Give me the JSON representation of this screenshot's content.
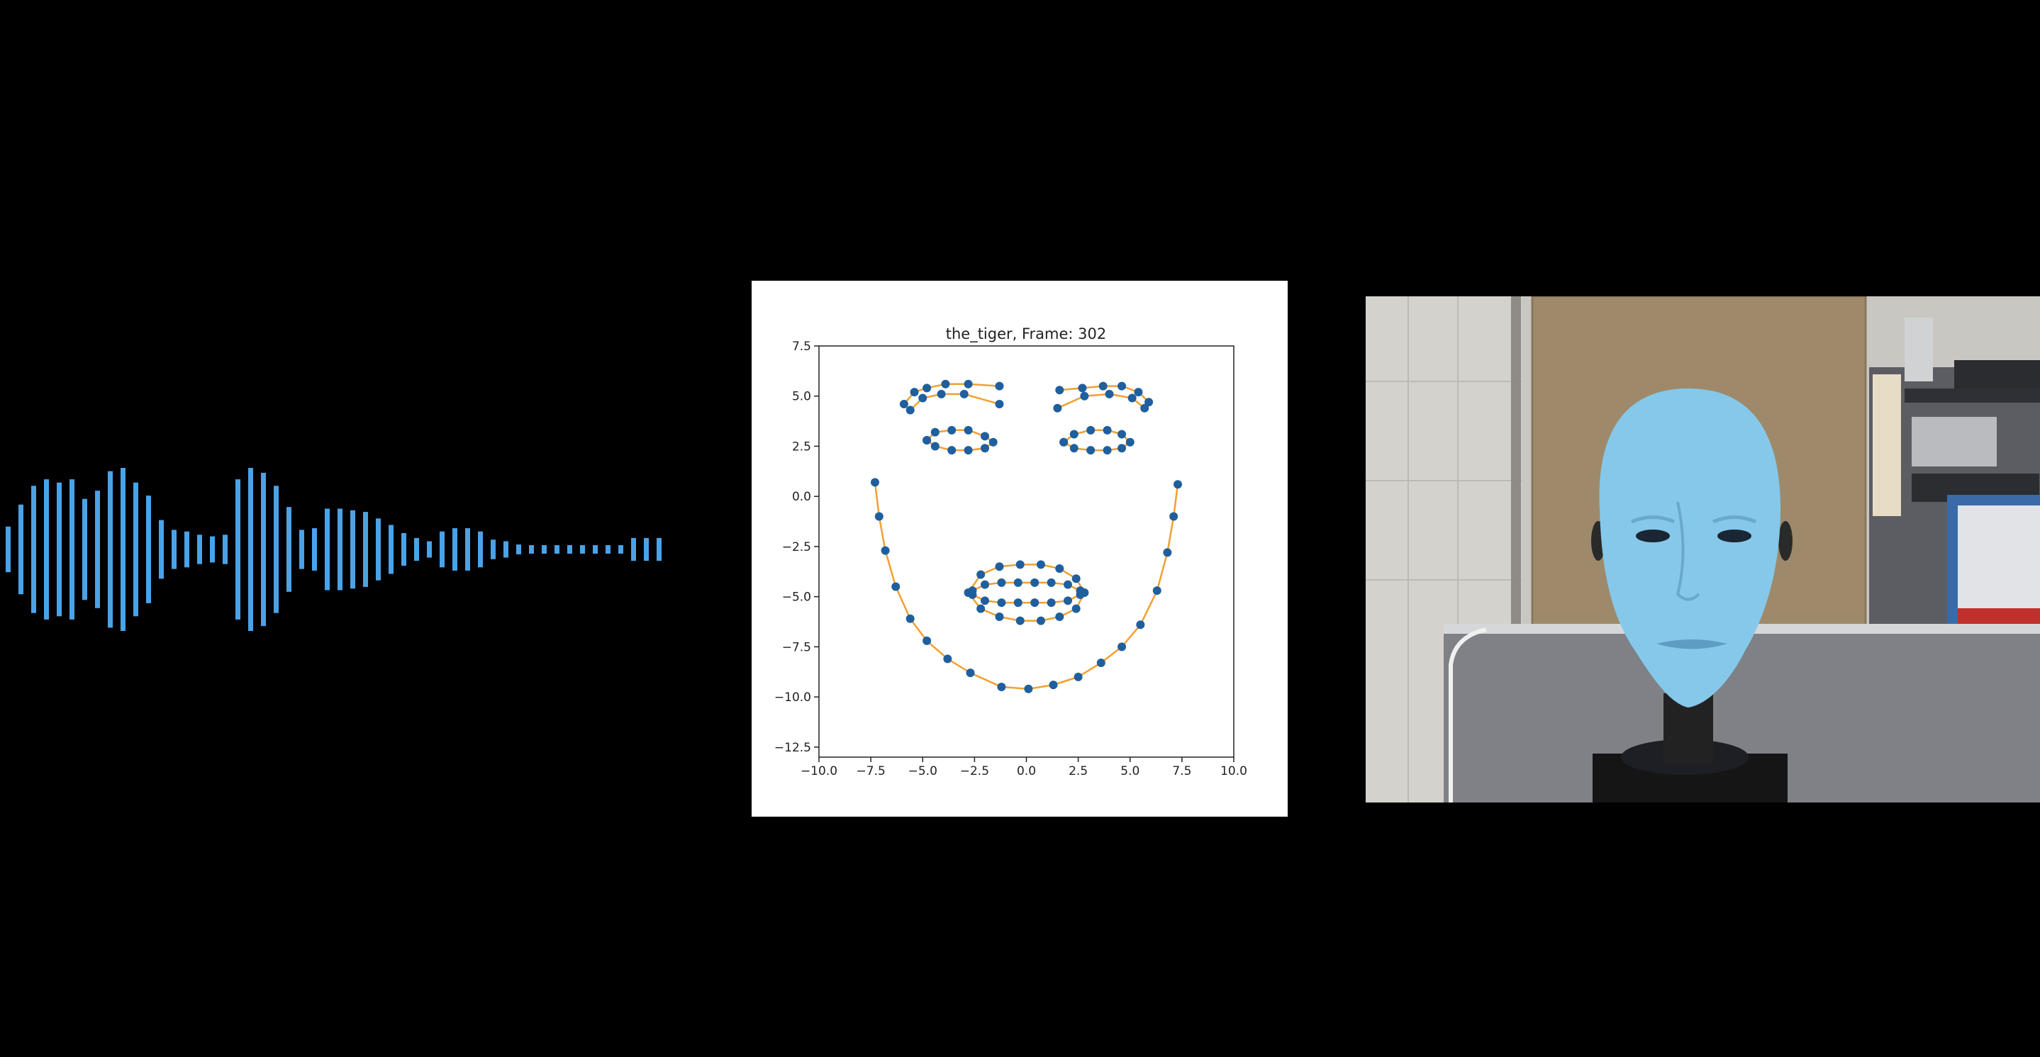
{
  "waveform": {
    "color": "#4aa3e8",
    "amplitudes": [
      0.28,
      0.55,
      0.78,
      0.86,
      0.82,
      0.86,
      0.62,
      0.72,
      0.96,
      1.0,
      0.82,
      0.66,
      0.36,
      0.24,
      0.22,
      0.18,
      0.16,
      0.18,
      0.86,
      1.0,
      0.94,
      0.78,
      0.52,
      0.24,
      0.26,
      0.5,
      0.5,
      0.48,
      0.46,
      0.38,
      0.3,
      0.2,
      0.14,
      0.1,
      0.22,
      0.26,
      0.26,
      0.22,
      0.12,
      0.1,
      0.06,
      0.05,
      0.05,
      0.05,
      0.05,
      0.05,
      0.05,
      0.05,
      0.05,
      0.14,
      0.14,
      0.14
    ]
  },
  "chart_data": {
    "type": "scatter",
    "title": "the_tiger, Frame: 302",
    "xlim": [
      -10,
      10
    ],
    "ylim": [
      -13,
      7.5
    ],
    "xticks": [
      "−10.0",
      "−7.5",
      "−5.0",
      "−2.5",
      "0.0",
      "2.5",
      "5.0",
      "7.5",
      "10.0"
    ],
    "xtick_values": [
      -10,
      -7.5,
      -5,
      -2.5,
      0,
      2.5,
      5,
      7.5,
      10
    ],
    "yticks": [
      "7.5",
      "5.0",
      "2.5",
      "0.0",
      "−2.5",
      "−5.0",
      "−7.5",
      "−10.0",
      "−12.5"
    ],
    "ytick_values": [
      7.5,
      5,
      2.5,
      0,
      -2.5,
      -5,
      -7.5,
      -10,
      -12.5
    ],
    "point_color": "#1f5f9e",
    "line_color": "#f0a030",
    "series": [
      {
        "kind": "jaw",
        "points": [
          [
            -7.3,
            0.7
          ],
          [
            -7.1,
            -1.0
          ],
          [
            -6.8,
            -2.7
          ],
          [
            -6.3,
            -4.5
          ],
          [
            -5.6,
            -6.1
          ],
          [
            -4.8,
            -7.2
          ],
          [
            -3.8,
            -8.1
          ],
          [
            -2.7,
            -8.8
          ],
          [
            -1.2,
            -9.5
          ],
          [
            0.1,
            -9.6
          ],
          [
            1.3,
            -9.4
          ],
          [
            2.5,
            -9.0
          ],
          [
            3.6,
            -8.3
          ],
          [
            4.6,
            -7.5
          ],
          [
            5.5,
            -6.4
          ],
          [
            6.3,
            -4.7
          ],
          [
            6.8,
            -2.8
          ],
          [
            7.1,
            -1.0
          ],
          [
            7.3,
            0.6
          ]
        ]
      },
      {
        "kind": "brow",
        "points": [
          [
            -5.9,
            4.6
          ],
          [
            -5.4,
            5.2
          ],
          [
            -4.8,
            5.4
          ],
          [
            -3.9,
            5.6
          ],
          [
            -2.8,
            5.6
          ],
          [
            -1.3,
            5.5
          ]
        ]
      },
      {
        "kind": "brow",
        "points": [
          [
            -5.6,
            4.3
          ],
          [
            -5.0,
            4.9
          ],
          [
            -4.1,
            5.1
          ],
          [
            -3.0,
            5.1
          ],
          [
            -1.3,
            4.6
          ]
        ]
      },
      {
        "kind": "brow",
        "points": [
          [
            1.6,
            5.3
          ],
          [
            2.7,
            5.4
          ],
          [
            3.7,
            5.5
          ],
          [
            4.6,
            5.5
          ],
          [
            5.4,
            5.2
          ],
          [
            5.9,
            4.7
          ]
        ]
      },
      {
        "kind": "brow",
        "points": [
          [
            1.5,
            4.4
          ],
          [
            2.8,
            5.0
          ],
          [
            4.0,
            5.1
          ],
          [
            5.1,
            4.9
          ],
          [
            5.7,
            4.4
          ]
        ]
      },
      {
        "kind": "eye",
        "points": [
          [
            -4.8,
            2.8
          ],
          [
            -4.4,
            3.2
          ],
          [
            -3.6,
            3.3
          ],
          [
            -2.8,
            3.3
          ],
          [
            -2.0,
            3.0
          ],
          [
            -1.6,
            2.7
          ],
          [
            -2.0,
            2.4
          ],
          [
            -2.8,
            2.3
          ],
          [
            -3.6,
            2.3
          ],
          [
            -4.4,
            2.5
          ],
          [
            -4.8,
            2.8
          ]
        ]
      },
      {
        "kind": "eye",
        "points": [
          [
            1.8,
            2.7
          ],
          [
            2.3,
            3.1
          ],
          [
            3.1,
            3.3
          ],
          [
            3.9,
            3.3
          ],
          [
            4.6,
            3.1
          ],
          [
            5.0,
            2.7
          ],
          [
            4.6,
            2.4
          ],
          [
            3.9,
            2.3
          ],
          [
            3.1,
            2.3
          ],
          [
            2.3,
            2.4
          ],
          [
            1.8,
            2.7
          ]
        ]
      },
      {
        "kind": "lips",
        "points": [
          [
            -2.8,
            -4.8
          ],
          [
            -2.2,
            -3.9
          ],
          [
            -1.3,
            -3.5
          ],
          [
            -0.3,
            -3.4
          ],
          [
            0.7,
            -3.4
          ],
          [
            1.6,
            -3.6
          ],
          [
            2.4,
            -4.1
          ],
          [
            2.8,
            -4.8
          ],
          [
            2.4,
            -5.6
          ],
          [
            1.6,
            -6.0
          ],
          [
            0.7,
            -6.2
          ],
          [
            -0.3,
            -6.2
          ],
          [
            -1.3,
            -6.0
          ],
          [
            -2.2,
            -5.6
          ],
          [
            -2.8,
            -4.8
          ]
        ]
      },
      {
        "kind": "lips",
        "points": [
          [
            -2.6,
            -4.7
          ],
          [
            -2.0,
            -4.4
          ],
          [
            -1.2,
            -4.3
          ],
          [
            -0.4,
            -4.3
          ],
          [
            0.4,
            -4.3
          ],
          [
            1.2,
            -4.3
          ],
          [
            2.0,
            -4.4
          ],
          [
            2.6,
            -4.7
          ]
        ]
      },
      {
        "kind": "lips",
        "points": [
          [
            -2.6,
            -4.9
          ],
          [
            -2.0,
            -5.2
          ],
          [
            -1.2,
            -5.3
          ],
          [
            -0.4,
            -5.3
          ],
          [
            0.4,
            -5.3
          ],
          [
            1.2,
            -5.3
          ],
          [
            2.0,
            -5.2
          ],
          [
            2.6,
            -4.9
          ]
        ]
      }
    ]
  },
  "video": {
    "face_color": "#86c8ea",
    "wall_color": "#c9c7c1",
    "panel_color": "#9e8a6a",
    "desk_color": "#7f8186"
  }
}
